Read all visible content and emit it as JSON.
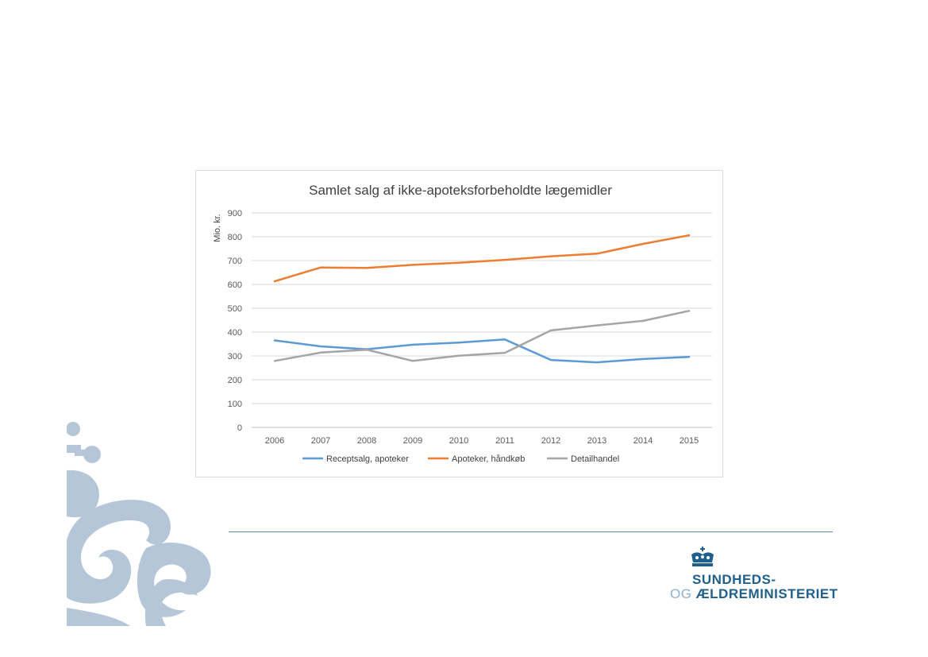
{
  "logo": {
    "line1": "SUNDHEDS-",
    "line2_prefix": "OG ",
    "line2_main": "ÆLDREMINISTERIET"
  },
  "colors": {
    "accent": "#1f5f8b",
    "ornament": "#b4c6d7",
    "divider": "#5b8db8",
    "series": [
      "#5b9bd5",
      "#ed7d31",
      "#a5a5a5"
    ],
    "gridline": "#d9d9d9"
  },
  "chart_data": {
    "type": "line",
    "title": "Samlet salg af ikke-apoteksforbeholdte lægemidler",
    "xlabel": "",
    "ylabel": "Mio. kr.",
    "ylim": [
      0,
      900
    ],
    "yticks": [
      0,
      100,
      200,
      300,
      400,
      500,
      600,
      700,
      800,
      900
    ],
    "grid": true,
    "legend_position": "bottom",
    "categories": [
      "2006",
      "2007",
      "2008",
      "2009",
      "2010",
      "2011",
      "2012",
      "2013",
      "2014",
      "2015"
    ],
    "series": [
      {
        "name": "Receptsalg, apoteker",
        "color": "#5b9bd5",
        "values": [
          365,
          340,
          328,
          347,
          356,
          369,
          283,
          273,
          287,
          296
        ]
      },
      {
        "name": "Apoteker, håndkøb",
        "color": "#ed7d31",
        "values": [
          613,
          671,
          669,
          682,
          691,
          703,
          718,
          729,
          770,
          806
        ]
      },
      {
        "name": "Detailhandel",
        "color": "#a5a5a5",
        "values": [
          279,
          314,
          326,
          279,
          301,
          313,
          407,
          428,
          447,
          489
        ]
      }
    ]
  }
}
